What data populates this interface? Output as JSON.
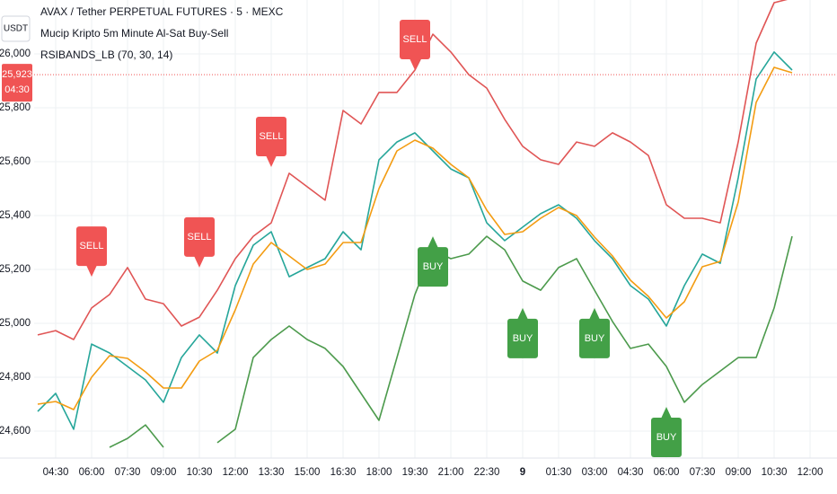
{
  "chart_data": {
    "type": "line",
    "title": "AVAX / Tether PERPETUAL FUTURES · 5 · MEXC",
    "subtitle": "Mucip Kripto 5m Minute Al-Sat Buy-Sell",
    "indicator": "RSIBANDS_LB (70, 30, 14)",
    "currency_button": "USDT",
    "categories": [
      null,
      "04:30",
      null,
      "06:00",
      null,
      "07:30",
      null,
      "09:00",
      null,
      "10:30",
      null,
      "12:00",
      null,
      "13:30",
      null,
      "15:00",
      null,
      "16:30",
      null,
      "18:00",
      null,
      "19:30",
      null,
      "21:00",
      null,
      "22:30",
      null,
      "9",
      null,
      "01:30",
      null,
      "03:00",
      null,
      "04:30",
      null,
      "06:00",
      null,
      "07:30",
      null,
      "09:00",
      null,
      "10:30",
      null,
      "12:00"
    ],
    "series": [
      {
        "color": "#e05555",
        "values": [
          24957,
          24973,
          24940,
          25057,
          25107,
          25207,
          25090,
          25073,
          24990,
          25023,
          25123,
          25240,
          25323,
          25373,
          25557,
          25507,
          25457,
          25790,
          25740,
          25857,
          25857,
          25940,
          26073,
          26007,
          25923,
          25873,
          25757,
          25657,
          25607,
          25590,
          25673,
          25657,
          25707,
          25673,
          25623,
          25440,
          25390,
          25390,
          25373,
          25673,
          26040,
          26190,
          26207,
          null
        ]
      },
      {
        "color": "#4c9a4c",
        "values": [
          null,
          null,
          null,
          null,
          24540,
          24573,
          24623,
          24540,
          null,
          null,
          24557,
          24607,
          24873,
          24940,
          24990,
          24940,
          24907,
          24840,
          24740,
          24640,
          24873,
          25107,
          25273,
          25240,
          25257,
          25323,
          25273,
          25157,
          25123,
          25207,
          25240,
          25123,
          25007,
          24907,
          24923,
          24840,
          24707,
          24773,
          24823,
          24873,
          24873,
          25057,
          25323,
          null
        ]
      },
      {
        "color": "#26a69a",
        "values": [
          24673,
          24740,
          24607,
          24923,
          24890,
          24840,
          24790,
          24707,
          24873,
          24957,
          24890,
          25140,
          25290,
          25340,
          25173,
          25207,
          25240,
          25340,
          25273,
          25607,
          25673,
          25707,
          25640,
          25573,
          25540,
          25373,
          25307,
          25357,
          25407,
          25440,
          25390,
          25307,
          25240,
          25140,
          25090,
          24990,
          25140,
          25257,
          25223,
          25540,
          25907,
          26007,
          25940,
          null
        ]
      },
      {
        "color": "#f39c12",
        "values": [
          24700,
          24710,
          24680,
          24800,
          24880,
          24870,
          24820,
          24760,
          24760,
          24860,
          24900,
          25050,
          25220,
          25300,
          25250,
          25200,
          25220,
          25300,
          25300,
          25500,
          25640,
          25680,
          25650,
          25590,
          25540,
          25420,
          25330,
          25340,
          25390,
          25430,
          25400,
          25320,
          25250,
          25160,
          25100,
          25020,
          25080,
          25210,
          25230,
          25450,
          25820,
          25950,
          25930,
          null
        ]
      }
    ],
    "signals": [
      {
        "label": "SELL",
        "index": 3,
        "value": 25173,
        "color": "#f05454"
      },
      {
        "label": "SELL",
        "index": 9,
        "value": 25207,
        "color": "#f05454"
      },
      {
        "label": "SELL",
        "index": 13,
        "value": 25580,
        "color": "#f05454"
      },
      {
        "label": "SELL",
        "index": 21,
        "value": 25940,
        "color": "#f05454"
      },
      {
        "label": "BUY",
        "index": 22,
        "value": 25323,
        "color": "#43a047"
      },
      {
        "label": "BUY",
        "index": 27,
        "value": 25057,
        "color": "#43a047"
      },
      {
        "label": "BUY",
        "index": 31,
        "value": 25057,
        "color": "#43a047"
      },
      {
        "label": "BUY",
        "index": 35,
        "value": 24690,
        "color": "#43a047"
      }
    ],
    "price_badge": {
      "value": 25923,
      "label": "25,923",
      "countdown": "04:30",
      "color": "#f05454"
    },
    "ylim": [
      24500,
      26200
    ],
    "yticks": [
      {
        "value": 24600,
        "label": "24,600"
      },
      {
        "value": 24800,
        "label": "24,800"
      },
      {
        "value": 25000,
        "label": "25,000"
      },
      {
        "value": 25200,
        "label": "25,200"
      },
      {
        "value": 25400,
        "label": "25,400"
      },
      {
        "value": 25600,
        "label": "25,600"
      },
      {
        "value": 25800,
        "label": "25,800"
      },
      {
        "value": 26000,
        "label": "26,000"
      }
    ],
    "grid": true
  }
}
